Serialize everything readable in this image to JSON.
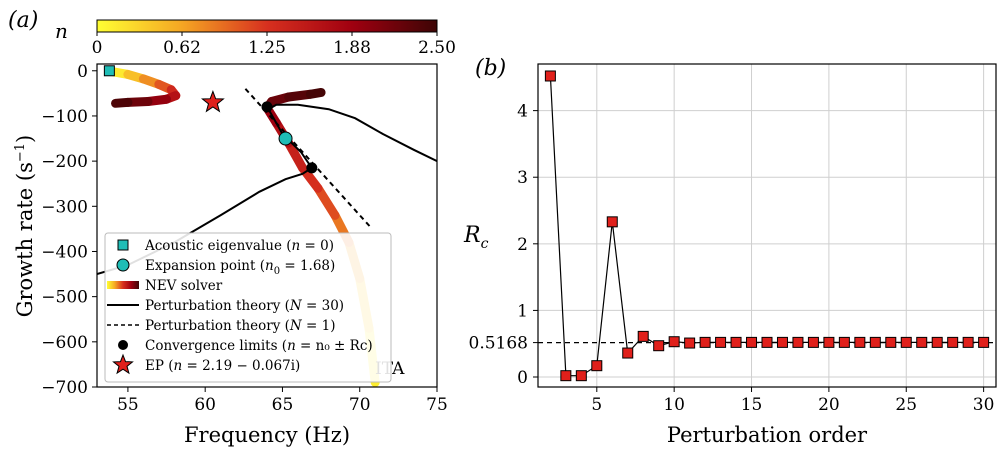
{
  "chart_data": [
    {
      "type": "line",
      "panel_label": "(a)",
      "xlabel": "Frequency (Hz)",
      "ylabel_main": "Growth rate (s",
      "ylabel_sup": "−1",
      "ylabel_close": ")",
      "xlim": [
        53,
        75
      ],
      "ylim": [
        -700,
        15
      ],
      "xticks": [
        55,
        60,
        65,
        70,
        75
      ],
      "yticks": [
        0,
        -100,
        -200,
        -300,
        -400,
        -500,
        -600,
        -700
      ],
      "colorbar": {
        "label": "n",
        "range": [
          0,
          2.5
        ],
        "ticks": [
          "0",
          "0.62",
          "1.25",
          "1.88",
          "2.50"
        ],
        "colors": [
          "#ffff33",
          "#f5a623",
          "#d7301f",
          "#a00010",
          "#3d0505"
        ]
      },
      "annotation": "ITA",
      "series": [
        {
          "name": "Acoustic eigenvalue (n = 0)",
          "kind": "square-marker",
          "color": "#1fbdb6",
          "points": [
            [
              53.8,
              0
            ]
          ]
        },
        {
          "name": "Expansion point (n0 = 1.68)",
          "kind": "circle-marker",
          "color": "#1fbdb6",
          "points": [
            [
              65.2,
              -150
            ]
          ]
        },
        {
          "name": "NEV solver",
          "kind": "gradient-band",
          "branches": [
            {
              "x": [
                54.0,
                55.0,
                56.0,
                57.0,
                57.8,
                58.1,
                57.5,
                56.3,
                55.0,
                54.2
              ],
              "y": [
                -2,
                -8,
                -18,
                -30,
                -42,
                -55,
                -63,
                -68,
                -70,
                -72
              ],
              "n": [
                0,
                0.3,
                0.6,
                0.9,
                1.2,
                1.5,
                1.8,
                2.1,
                2.3,
                2.5
              ]
            },
            {
              "x": [
                71.0,
                70.6,
                70.0,
                69.3,
                68.4,
                67.3,
                66.3,
                65.4,
                64.6,
                64.0,
                64.3,
                65.4,
                66.8,
                67.5
              ],
              "y": [
                -690,
                -570,
                -460,
                -380,
                -320,
                -260,
                -215,
                -160,
                -115,
                -82,
                -68,
                -58,
                -52,
                -48
              ],
              "n": [
                0,
                0.25,
                0.5,
                0.75,
                1.0,
                1.2,
                1.35,
                1.55,
                1.8,
                2.0,
                2.15,
                2.3,
                2.4,
                2.5
              ]
            }
          ]
        },
        {
          "name": "Perturbation theory (N = 30)",
          "kind": "solid-line",
          "color": "#000000",
          "x": [
            53.0,
            55.0,
            58.0,
            61.0,
            63.5,
            65.2,
            66.3,
            66.9,
            66.2,
            65.0,
            64.1,
            64.6,
            66.0,
            68.0,
            69.7,
            71.5,
            73.5,
            75.0
          ],
          "y": [
            -450,
            -430,
            -380,
            -320,
            -268,
            -240,
            -228,
            -215,
            -180,
            -140,
            -85,
            -75,
            -75,
            -85,
            -105,
            -140,
            -175,
            -200
          ]
        },
        {
          "name": "Perturbation theory (N = 1)",
          "kind": "dashed-line",
          "color": "#000000",
          "x": [
            62.6,
            70.8
          ],
          "y": [
            -40,
            -350
          ]
        },
        {
          "name": "Convergence limits (n = n0 ± Rc)",
          "kind": "dot-marker",
          "color": "#000000",
          "points": [
            [
              64.0,
              -80
            ],
            [
              66.9,
              -215
            ]
          ]
        },
        {
          "name": "EP (n = 2.19 − 0.067i)",
          "kind": "star-marker",
          "color": "#e0201b",
          "points": [
            [
              60.5,
              -70
            ]
          ]
        }
      ],
      "legend": {
        "placement": "lower-left",
        "entries": [
          {
            "text": "Acoustic eigenvalue (",
            "italic": "n",
            "tail": " = 0)"
          },
          {
            "text": "Expansion point (",
            "italic": "n",
            "sub": "0",
            "tail": " = 1.68)"
          },
          {
            "text": "NEV solver",
            "italic": "",
            "tail": ""
          },
          {
            "text": "Perturbation theory (",
            "italic": "N",
            "tail": " = 30)"
          },
          {
            "text": "Perturbation theory (",
            "italic": "N",
            "tail": " = 1)"
          },
          {
            "text": "Convergence limits (",
            "italic": "n",
            "tail": " = n₀ ± Rc)"
          },
          {
            "text": "EP (",
            "italic": "n",
            "tail": " = 2.19 − 0.067i)"
          }
        ]
      }
    },
    {
      "type": "line",
      "panel_label": "(b)",
      "xlabel": "Perturbation order",
      "ylabel": "R",
      "ylabel_sub": "c",
      "xlim": [
        1.2,
        30.8
      ],
      "ylim": [
        -0.15,
        4.7
      ],
      "xticks": [
        5,
        10,
        15,
        20,
        25,
        30
      ],
      "yticks": [
        0,
        1,
        2,
        3,
        4
      ],
      "ytick_labels": [
        "0",
        "1",
        "2",
        "3",
        "4"
      ],
      "extra_ytick": {
        "value": 0.5168,
        "label": "0.5168"
      },
      "reference_line": {
        "y": 0.5168,
        "style": "dashed"
      },
      "grid": true,
      "marker_color": "#e0201b",
      "series": [
        {
          "x": [
            2,
            3,
            4,
            5,
            6,
            7,
            8,
            9,
            10,
            11,
            12,
            13,
            14,
            15,
            16,
            17,
            18,
            19,
            20,
            21,
            22,
            23,
            24,
            25,
            26,
            27,
            28,
            29,
            30
          ],
          "values": [
            4.52,
            0.02,
            0.02,
            0.17,
            2.33,
            0.36,
            0.61,
            0.47,
            0.53,
            0.51,
            0.52,
            0.52,
            0.52,
            0.52,
            0.52,
            0.52,
            0.52,
            0.52,
            0.52,
            0.52,
            0.52,
            0.52,
            0.52,
            0.52,
            0.52,
            0.52,
            0.52,
            0.52,
            0.52
          ]
        }
      ]
    }
  ]
}
